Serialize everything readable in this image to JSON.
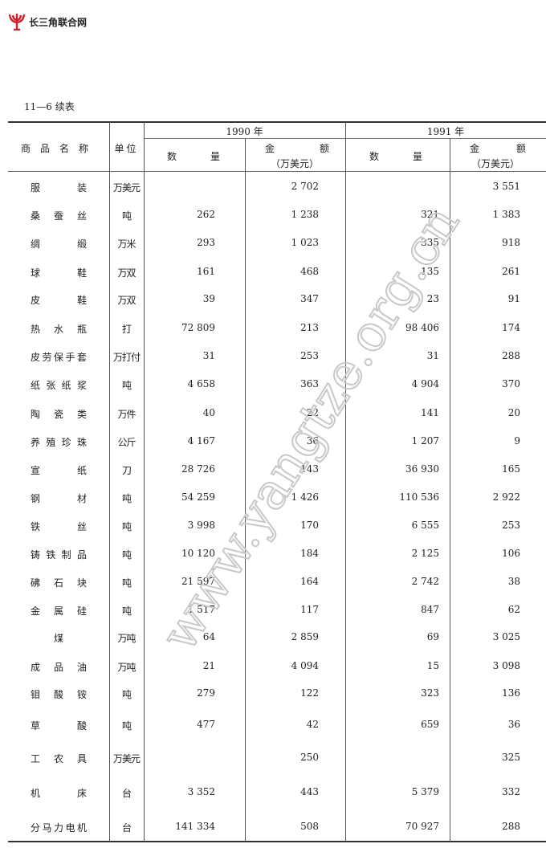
{
  "logo": {
    "text": "长三角联合网",
    "color": "#d0202a"
  },
  "caption": "11—6 续表",
  "header": {
    "name": "商品名称",
    "unit": "单位",
    "year1": "1990 年",
    "year2": "1991 年",
    "qty_a": "数",
    "qty_b": "量",
    "val_a": "金",
    "val_b": "额",
    "val_unit": "（万美元）"
  },
  "rows": [
    {
      "name": "服装",
      "unit": "万美元",
      "q1990": "",
      "v1990": "2 702",
      "q1991": "",
      "v1991": "3 551"
    },
    {
      "name": "桑蚕丝",
      "unit": "吨",
      "q1990": "262",
      "v1990": "1 238",
      "q1991": "321",
      "v1991": "1 383"
    },
    {
      "name": "绸缎",
      "unit": "万米",
      "q1990": "293",
      "v1990": "1 023",
      "q1991": "335",
      "v1991": "918"
    },
    {
      "name": "球鞋",
      "unit": "万双",
      "q1990": "161",
      "v1990": "468",
      "q1991": "135",
      "v1991": "261"
    },
    {
      "name": "皮鞋",
      "unit": "万双",
      "q1990": "39",
      "v1990": "347",
      "q1991": "23",
      "v1991": "91"
    },
    {
      "name": "热水瓶",
      "unit": "打",
      "q1990": "72 809",
      "v1990": "213",
      "q1991": "98 406",
      "v1991": "174"
    },
    {
      "name": "皮劳保手套",
      "unit": "万打付",
      "q1990": "31",
      "v1990": "253",
      "q1991": "31",
      "v1991": "288"
    },
    {
      "name": "纸张纸浆",
      "unit": "吨",
      "q1990": "4 658",
      "v1990": "363",
      "q1991": "4 904",
      "v1991": "370"
    },
    {
      "name": "陶瓷类",
      "unit": "万件",
      "q1990": "40",
      "v1990": "22",
      "q1991": "141",
      "v1991": "20"
    },
    {
      "name": "养殖珍珠",
      "unit": "公斤",
      "q1990": "4 167",
      "v1990": "36",
      "q1991": "1 207",
      "v1991": "9"
    },
    {
      "name": "宣纸",
      "unit": "刀",
      "q1990": "28 726",
      "v1990": "143",
      "q1991": "36 930",
      "v1991": "165"
    },
    {
      "name": "钢材",
      "unit": "吨",
      "q1990": "54 259",
      "v1990": "1 426",
      "q1991": "110 536",
      "v1991": "2 922"
    },
    {
      "name": "铁丝",
      "unit": "吨",
      "q1990": "3 998",
      "v1990": "170",
      "q1991": "6 555",
      "v1991": "253"
    },
    {
      "name": "铸铁制品",
      "unit": "吨",
      "q1990": "10 120",
      "v1990": "184",
      "q1991": "2 125",
      "v1991": "106"
    },
    {
      "name": "砩石块",
      "unit": "吨",
      "q1990": "21 597",
      "v1990": "164",
      "q1991": "2 742",
      "v1991": "38"
    },
    {
      "name": "金属硅",
      "unit": "吨",
      "q1990": "1 517",
      "v1990": "117",
      "q1991": "847",
      "v1991": "62"
    },
    {
      "name": "煤",
      "unit": "万吨",
      "q1990": "64",
      "v1990": "2 859",
      "q1991": "69",
      "v1991": "3 025"
    },
    {
      "name": "成品油",
      "unit": "万吨",
      "q1990": "21",
      "v1990": "4 094",
      "q1991": "15",
      "v1991": "3 098"
    },
    {
      "name": "钼酸铵",
      "unit": "吨",
      "q1990": "279",
      "v1990": "122",
      "q1991": "323",
      "v1991": "136"
    },
    {
      "name": "草酸",
      "unit": "吨",
      "q1990": "477",
      "v1990": "42",
      "q1991": "659",
      "v1991": "36"
    },
    {
      "name": "工农具",
      "unit": "万美元",
      "q1990": "",
      "v1990": "250",
      "q1991": "",
      "v1991": "325"
    },
    {
      "name": "机床",
      "unit": "台",
      "q1990": "3 352",
      "v1990": "443",
      "q1991": "5 379",
      "v1991": "332"
    },
    {
      "name": "分马力电机",
      "unit": "台",
      "q1990": "141 334",
      "v1990": "508",
      "q1991": "70 927",
      "v1991": "288"
    }
  ],
  "watermark": "www.yangtze.org.cn"
}
